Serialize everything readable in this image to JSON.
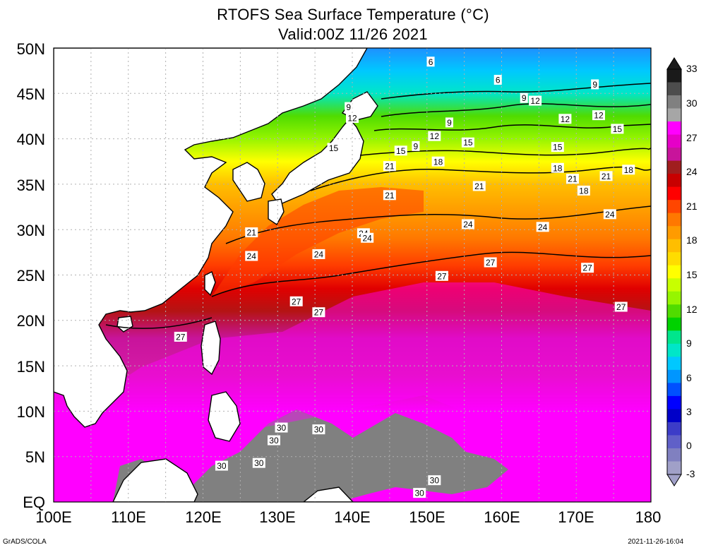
{
  "title": "RTOFS Sea Surface Temperature (°C)",
  "subtitle": "Valid:00Z 11/26 2021",
  "footer_left": "GrADS/COLA",
  "footer_right": "2021-11-26-16:04",
  "axes": {
    "lat_labels": [
      "50N",
      "45N",
      "40N",
      "35N",
      "30N",
      "25N",
      "20N",
      "15N",
      "10N",
      "5N",
      "EQ"
    ],
    "lon_labels": [
      "100E",
      "110E",
      "120E",
      "130E",
      "140E",
      "150E",
      "160E",
      "170E",
      "180"
    ],
    "lon_range": [
      100,
      180
    ],
    "lat_range": [
      0,
      50
    ],
    "grid": true
  },
  "colorbar": {
    "labels": [
      "33",
      "30",
      "27",
      "24",
      "21",
      "18",
      "15",
      "12",
      "9",
      "6",
      "3",
      "0",
      "-3"
    ],
    "colors": [
      "#1a1a1a",
      "#4d4d4d",
      "#808080",
      "#a6a6a6",
      "#ff00ff",
      "#e600c8",
      "#c8149b",
      "#a01e1e",
      "#c80000",
      "#ff0000",
      "#ff4600",
      "#ff7800",
      "#ff9b00",
      "#ffbe00",
      "#ffdc00",
      "#ffff00",
      "#c8ff00",
      "#96f500",
      "#50dc00",
      "#00d200",
      "#00e68c",
      "#00e6c8",
      "#00c8ff",
      "#0096ff",
      "#0050ff",
      "#0000ff",
      "#0000c8",
      "#3c3cc8",
      "#6060c8",
      "#8080c0",
      "#a0a0c8"
    ]
  },
  "map_data": {
    "type": "contour-map",
    "variable": "Sea Surface Temperature",
    "units": "°C",
    "contour_interval": 3,
    "sst_by_lat": [
      {
        "lat": 0,
        "sst": 30
      },
      {
        "lat": 10,
        "sst": 29.5
      },
      {
        "lat": 20,
        "sst": 27.5
      },
      {
        "lat": 25,
        "sst": 26
      },
      {
        "lat": 30,
        "sst": 23
      },
      {
        "lat": 35,
        "sst": 20
      },
      {
        "lat": 40,
        "sst": 15
      },
      {
        "lat": 45,
        "sst": 10
      },
      {
        "lat": 50,
        "sst": 5
      }
    ],
    "contour_labels": [
      {
        "text": "6",
        "lon": 150.5,
        "lat": 48.5
      },
      {
        "text": "6",
        "lon": 159.5,
        "lat": 46.5
      },
      {
        "text": "9",
        "lon": 139.5,
        "lat": 43.5
      },
      {
        "text": "12",
        "lon": 140,
        "lat": 42.3
      },
      {
        "text": "9",
        "lon": 163,
        "lat": 44.5
      },
      {
        "text": "12",
        "lon": 164.5,
        "lat": 44.2
      },
      {
        "text": "9",
        "lon": 172.5,
        "lat": 46
      },
      {
        "text": "12",
        "lon": 168.5,
        "lat": 42.2
      },
      {
        "text": "12",
        "lon": 173,
        "lat": 42.6
      },
      {
        "text": "15",
        "lon": 175.5,
        "lat": 41.1
      },
      {
        "text": "9",
        "lon": 153,
        "lat": 41.8
      },
      {
        "text": "12",
        "lon": 151,
        "lat": 40.3
      },
      {
        "text": "9",
        "lon": 148.5,
        "lat": 39.2
      },
      {
        "text": "15",
        "lon": 155.5,
        "lat": 39.6
      },
      {
        "text": "15",
        "lon": 167.5,
        "lat": 39.1
      },
      {
        "text": "15",
        "lon": 137.5,
        "lat": 39
      },
      {
        "text": "15",
        "lon": 146.5,
        "lat": 38.7
      },
      {
        "text": "18",
        "lon": 151.5,
        "lat": 37.5
      },
      {
        "text": "18",
        "lon": 167.5,
        "lat": 36.8
      },
      {
        "text": "21",
        "lon": 145,
        "lat": 37
      },
      {
        "text": "21",
        "lon": 157,
        "lat": 34.8
      },
      {
        "text": "21",
        "lon": 169.5,
        "lat": 35.6
      },
      {
        "text": "18",
        "lon": 171,
        "lat": 34.3
      },
      {
        "text": "21",
        "lon": 174,
        "lat": 35.9
      },
      {
        "text": "18",
        "lon": 177,
        "lat": 36.6
      },
      {
        "text": "21",
        "lon": 145,
        "lat": 33.8
      },
      {
        "text": "24",
        "lon": 174.5,
        "lat": 31.7
      },
      {
        "text": "24",
        "lon": 155.5,
        "lat": 30.6
      },
      {
        "text": "24",
        "lon": 165.5,
        "lat": 30.3
      },
      {
        "text": "24",
        "lon": 141.5,
        "lat": 29.6
      },
      {
        "text": "24",
        "lon": 142,
        "lat": 29.1
      },
      {
        "text": "21",
        "lon": 126.5,
        "lat": 29.7
      },
      {
        "text": "24",
        "lon": 126.5,
        "lat": 27.1
      },
      {
        "text": "24",
        "lon": 135.5,
        "lat": 27.3
      },
      {
        "text": "27",
        "lon": 158.5,
        "lat": 26.4
      },
      {
        "text": "27",
        "lon": 171.5,
        "lat": 25.8
      },
      {
        "text": "27",
        "lon": 152,
        "lat": 24.9
      },
      {
        "text": "27",
        "lon": 132.5,
        "lat": 22.1
      },
      {
        "text": "27",
        "lon": 135.5,
        "lat": 20.9
      },
      {
        "text": "27",
        "lon": 176,
        "lat": 21.5
      },
      {
        "text": "27",
        "lon": 117,
        "lat": 18.2
      },
      {
        "text": "30",
        "lon": 130.5,
        "lat": 8.2
      },
      {
        "text": "30",
        "lon": 129.5,
        "lat": 6.8
      },
      {
        "text": "30",
        "lon": 135.5,
        "lat": 8
      },
      {
        "text": "30",
        "lon": 127.5,
        "lat": 4.3
      },
      {
        "text": "30",
        "lon": 122.5,
        "lat": 4
      },
      {
        "text": "30",
        "lon": 151,
        "lat": 2.4
      },
      {
        "text": "30",
        "lon": 149,
        "lat": 1
      }
    ]
  }
}
